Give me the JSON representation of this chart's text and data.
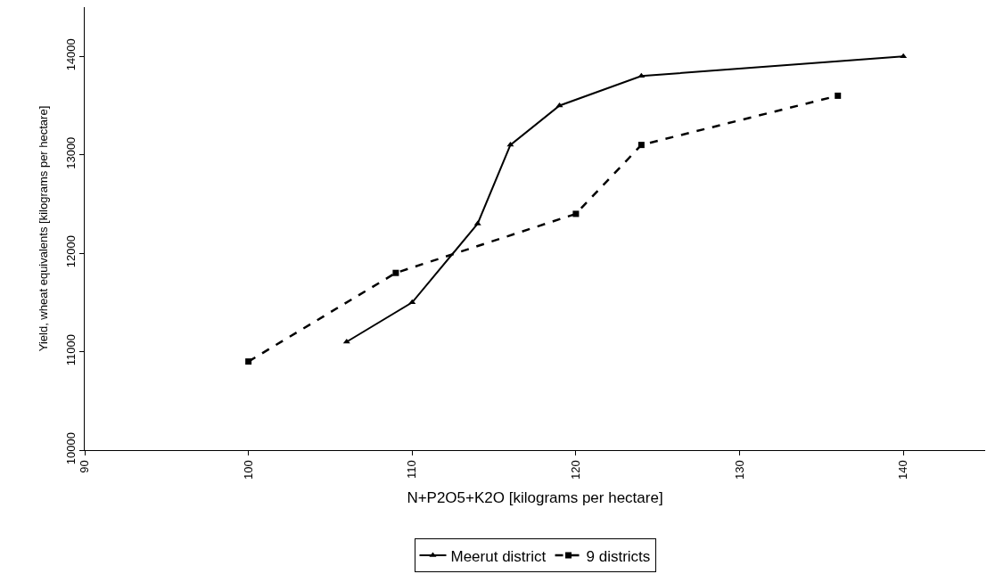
{
  "chart_data": {
    "type": "line",
    "xlabel": "N+P2O5+K2O [kilograms per hectare]",
    "ylabel": "Yield, wheat equivalents [kilograms per hectare]",
    "xlim": [
      90,
      145
    ],
    "xticks": [
      90,
      100,
      110,
      120,
      130,
      140
    ],
    "ylim": [
      10000,
      14500
    ],
    "yticks": [
      10000,
      11000,
      12000,
      13000,
      14000
    ],
    "grid": false,
    "legend": "bottom",
    "series": [
      {
        "name": "Meerut district",
        "color": "#000000",
        "marker": "triangle",
        "line_style": "solid",
        "x": [
          106,
          110,
          114,
          116,
          119,
          124,
          140
        ],
        "values": [
          11100,
          11500,
          12300,
          13100,
          13500,
          13800,
          14000
        ]
      },
      {
        "name": "9 districts",
        "color": "#000000",
        "marker": "square",
        "line_style": "dashed",
        "x": [
          100,
          109,
          120,
          124,
          136
        ],
        "values": [
          10900,
          11800,
          12400,
          13100,
          13600
        ]
      }
    ]
  }
}
